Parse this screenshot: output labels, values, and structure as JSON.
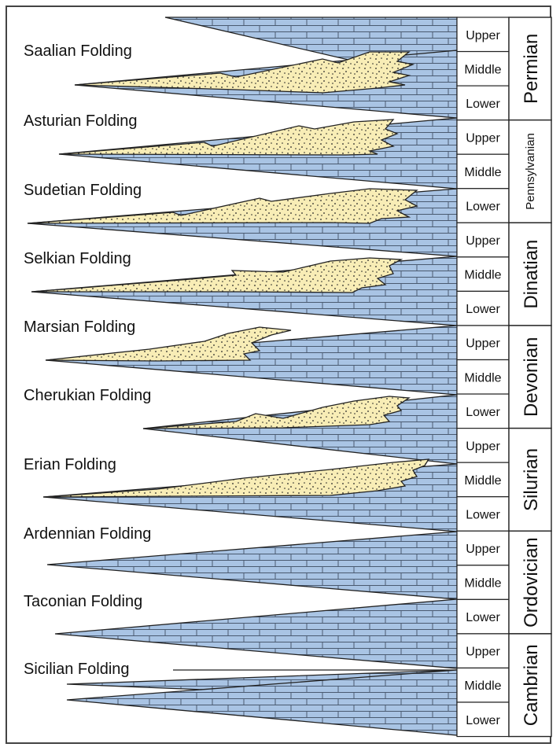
{
  "foldings": [
    "Saalian Folding",
    "Asturian Folding",
    "Sudetian Folding",
    "Selkian Folding",
    "Marsian Folding",
    "Cherukian Folding",
    "Erian Folding",
    "Ardennian Folding",
    "Taconian Folding",
    "Sicilian Folding"
  ],
  "periods": [
    "Permian",
    "Pennsylvanian",
    "Dinatian",
    "Devonian",
    "Silurian",
    "Ordovician",
    "Cambrian"
  ],
  "epochs": [
    "Upper",
    "Middle",
    "Lower"
  ],
  "colors": {
    "limestone": "#a9c4e4",
    "sandstone": "#f8edb6",
    "line": "#222222",
    "frame": "#444444"
  }
}
